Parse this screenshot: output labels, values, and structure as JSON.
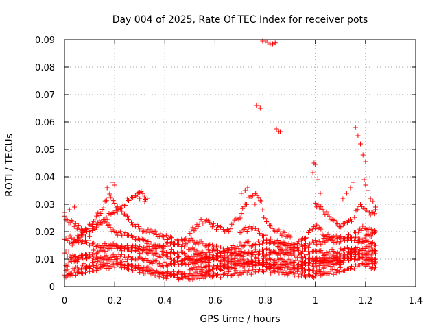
{
  "chart_data": {
    "type": "scatter",
    "title": "Day 004 of 2025, Rate Of TEC Index for receiver pots",
    "xlabel": "GPS time / hours",
    "ylabel": "ROTI / TECUs",
    "xlim": [
      0,
      1.4
    ],
    "ylim": [
      0,
      0.09
    ],
    "xticks": [
      0,
      0.2,
      0.4,
      0.6,
      0.8,
      1,
      1.2,
      1.4
    ],
    "xtick_labels": [
      "0",
      "0.2",
      "0.4",
      "0.6",
      "0.8",
      "1",
      "1.2",
      "1.4"
    ],
    "yticks": [
      0,
      0.01,
      0.02,
      0.03,
      0.04,
      0.05,
      0.06,
      0.07,
      0.08,
      0.09
    ],
    "ytick_labels": [
      "0",
      "0.01",
      "0.02",
      "0.03",
      "0.04",
      "0.05",
      "0.06",
      "0.07",
      "0.08",
      "0.09"
    ],
    "grid": true,
    "marker": "+",
    "color": "#ff0000",
    "tracks": [
      [
        [
          0.0,
          0.005
        ],
        [
          0.1,
          0.008
        ],
        [
          0.2,
          0.009
        ],
        [
          0.3,
          0.007
        ],
        [
          0.4,
          0.005
        ],
        [
          0.5,
          0.004
        ],
        [
          0.6,
          0.006
        ],
        [
          0.7,
          0.008
        ],
        [
          0.8,
          0.008
        ],
        [
          0.9,
          0.007
        ],
        [
          1.0,
          0.009
        ],
        [
          1.1,
          0.011
        ],
        [
          1.2,
          0.013
        ],
        [
          1.24,
          0.012
        ]
      ],
      [
        [
          0.0,
          0.008
        ],
        [
          0.1,
          0.012
        ],
        [
          0.2,
          0.015
        ],
        [
          0.3,
          0.014
        ],
        [
          0.4,
          0.011
        ],
        [
          0.5,
          0.009
        ],
        [
          0.6,
          0.01
        ],
        [
          0.7,
          0.012
        ],
        [
          0.8,
          0.013
        ],
        [
          0.9,
          0.012
        ],
        [
          1.0,
          0.01
        ],
        [
          1.1,
          0.009
        ],
        [
          1.2,
          0.011
        ],
        [
          1.24,
          0.01
        ]
      ],
      [
        [
          0.0,
          0.018
        ],
        [
          0.1,
          0.016
        ],
        [
          0.2,
          0.014
        ],
        [
          0.3,
          0.013
        ],
        [
          0.4,
          0.015
        ],
        [
          0.5,
          0.017
        ],
        [
          0.6,
          0.014
        ],
        [
          0.7,
          0.012
        ],
        [
          0.8,
          0.011
        ],
        [
          0.9,
          0.013
        ],
        [
          1.0,
          0.016
        ],
        [
          1.1,
          0.018
        ],
        [
          1.2,
          0.017
        ],
        [
          1.24,
          0.015
        ]
      ],
      [
        [
          0.0,
          0.004
        ],
        [
          0.1,
          0.006
        ],
        [
          0.2,
          0.008
        ],
        [
          0.3,
          0.006
        ],
        [
          0.4,
          0.004
        ],
        [
          0.5,
          0.003
        ],
        [
          0.6,
          0.004
        ],
        [
          0.7,
          0.005
        ],
        [
          0.8,
          0.006
        ],
        [
          0.9,
          0.005
        ],
        [
          1.0,
          0.004
        ],
        [
          1.1,
          0.006
        ],
        [
          1.2,
          0.008
        ],
        [
          1.24,
          0.007
        ]
      ],
      [
        [
          0.0,
          0.012
        ],
        [
          0.1,
          0.01
        ],
        [
          0.2,
          0.011
        ],
        [
          0.3,
          0.01
        ],
        [
          0.4,
          0.008
        ],
        [
          0.5,
          0.009
        ],
        [
          0.6,
          0.011
        ],
        [
          0.7,
          0.015
        ],
        [
          0.8,
          0.016
        ],
        [
          0.9,
          0.014
        ],
        [
          1.0,
          0.012
        ],
        [
          1.1,
          0.013
        ],
        [
          1.2,
          0.014
        ],
        [
          1.24,
          0.013
        ]
      ],
      [
        [
          0.0,
          0.025
        ],
        [
          0.05,
          0.022
        ],
        [
          0.1,
          0.019
        ],
        [
          0.15,
          0.024
        ],
        [
          0.2,
          0.02
        ],
        [
          0.3,
          0.017
        ],
        [
          0.4,
          0.013
        ],
        [
          0.5,
          0.011
        ],
        [
          0.6,
          0.01
        ],
        [
          0.7,
          0.009
        ],
        [
          0.8,
          0.01
        ],
        [
          0.9,
          0.009
        ],
        [
          1.0,
          0.008
        ],
        [
          1.1,
          0.01
        ],
        [
          1.2,
          0.018
        ],
        [
          1.24,
          0.02
        ]
      ],
      [
        [
          0.02,
          0.015
        ],
        [
          0.1,
          0.022
        ],
        [
          0.15,
          0.028
        ],
        [
          0.18,
          0.034
        ],
        [
          0.2,
          0.03
        ],
        [
          0.25,
          0.025
        ],
        [
          0.3,
          0.021
        ],
        [
          0.35,
          0.02
        ],
        [
          0.4,
          0.018
        ],
        [
          0.45,
          0.016
        ],
        [
          0.5,
          0.014
        ],
        [
          0.55,
          0.012
        ],
        [
          0.6,
          0.013
        ]
      ],
      [
        [
          0.05,
          0.018
        ],
        [
          0.1,
          0.02
        ],
        [
          0.15,
          0.024
        ],
        [
          0.2,
          0.027
        ],
        [
          0.25,
          0.031
        ],
        [
          0.3,
          0.034
        ],
        [
          0.33,
          0.032
        ]
      ],
      [
        [
          0.5,
          0.02
        ],
        [
          0.55,
          0.024
        ],
        [
          0.6,
          0.022
        ],
        [
          0.65,
          0.02
        ],
        [
          0.7,
          0.026
        ],
        [
          0.72,
          0.03
        ],
        [
          0.75,
          0.034
        ],
        [
          0.78,
          0.032
        ],
        [
          0.8,
          0.024
        ],
        [
          0.85,
          0.02
        ],
        [
          0.9,
          0.018
        ]
      ],
      [
        [
          0.7,
          0.02
        ],
        [
          0.75,
          0.022
        ],
        [
          0.8,
          0.018
        ],
        [
          0.85,
          0.016
        ],
        [
          0.9,
          0.015
        ],
        [
          0.95,
          0.017
        ],
        [
          1.0,
          0.022
        ],
        [
          1.05,
          0.018
        ],
        [
          1.1,
          0.016
        ],
        [
          1.15,
          0.019
        ],
        [
          1.2,
          0.022
        ],
        [
          1.24,
          0.02
        ]
      ],
      [
        [
          1.0,
          0.03
        ],
        [
          1.05,
          0.026
        ],
        [
          1.1,
          0.022
        ],
        [
          1.15,
          0.025
        ],
        [
          1.18,
          0.03
        ],
        [
          1.2,
          0.028
        ],
        [
          1.22,
          0.026
        ],
        [
          1.24,
          0.028
        ]
      ],
      [
        [
          0.5,
          0.006
        ],
        [
          0.6,
          0.007
        ],
        [
          0.7,
          0.009
        ],
        [
          0.8,
          0.008
        ],
        [
          0.85,
          0.007
        ],
        [
          0.9,
          0.008
        ],
        [
          0.95,
          0.006
        ],
        [
          1.0,
          0.005
        ],
        [
          1.05,
          0.007
        ],
        [
          1.1,
          0.009
        ],
        [
          1.15,
          0.011
        ],
        [
          1.2,
          0.01
        ],
        [
          1.24,
          0.009
        ]
      ]
    ],
    "outliers": [
      [
        0.0,
        0.027
      ],
      [
        0.02,
        0.028
      ],
      [
        0.04,
        0.029
      ],
      [
        0.17,
        0.036
      ],
      [
        0.19,
        0.038
      ],
      [
        0.2,
        0.037
      ],
      [
        0.29,
        0.034
      ],
      [
        0.3,
        0.032
      ],
      [
        0.32,
        0.031
      ],
      [
        0.705,
        0.034
      ],
      [
        0.72,
        0.035
      ],
      [
        0.73,
        0.036
      ],
      [
        0.74,
        0.033
      ],
      [
        0.76,
        0.03
      ],
      [
        0.765,
        0.066
      ],
      [
        0.775,
        0.066
      ],
      [
        0.78,
        0.065
      ],
      [
        0.79,
        0.0895
      ],
      [
        0.8,
        0.0895
      ],
      [
        0.81,
        0.089
      ],
      [
        0.82,
        0.0885
      ],
      [
        0.83,
        0.0885
      ],
      [
        0.84,
        0.0888
      ],
      [
        0.845,
        0.0575
      ],
      [
        0.855,
        0.0565
      ],
      [
        0.86,
        0.0565
      ],
      [
        0.99,
        0.0415
      ],
      [
        0.995,
        0.045
      ],
      [
        1.0,
        0.0445
      ],
      [
        1.01,
        0.039
      ],
      [
        1.02,
        0.034
      ],
      [
        1.11,
        0.032
      ],
      [
        1.125,
        0.034
      ],
      [
        1.14,
        0.036
      ],
      [
        1.15,
        0.038
      ],
      [
        1.16,
        0.058
      ],
      [
        1.17,
        0.055
      ],
      [
        1.18,
        0.052
      ],
      [
        1.19,
        0.048
      ],
      [
        1.2,
        0.0455
      ],
      [
        1.195,
        0.039
      ],
      [
        1.2,
        0.037
      ],
      [
        1.21,
        0.035
      ],
      [
        1.22,
        0.032
      ],
      [
        1.23,
        0.031
      ],
      [
        1.24,
        0.029
      ]
    ]
  }
}
